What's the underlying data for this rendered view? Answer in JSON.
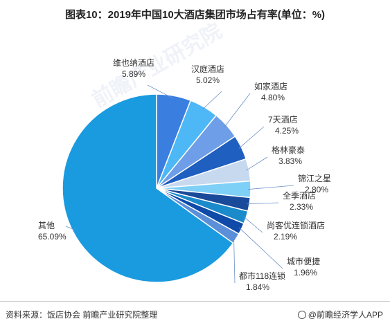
{
  "page": {
    "title": "图表10：2019年中国10大酒店集团市场占有率(单位：%)",
    "source": "资料来源：饭店协会 前瞻产业研究院整理",
    "brand": "@前瞻经济学人APP",
    "watermark": "前瞻产业研究院"
  },
  "chart_data": {
    "type": "pie",
    "title": "图表10：2019年中国10大酒店集团市场占有率(单位：%)",
    "unit": "%",
    "labels": [
      "维也纳酒店",
      "汉庭酒店",
      "如家酒店",
      "7天酒店",
      "格林豪泰",
      "锦江之星",
      "全季酒店",
      "尚客优连锁酒店",
      "城市便捷",
      "都市118连锁",
      "其他"
    ],
    "values": [
      5.89,
      5.02,
      4.8,
      4.25,
      3.83,
      2.8,
      2.33,
      2.19,
      1.96,
      1.84,
      65.09
    ],
    "value_labels": [
      "5.89%",
      "5.02%",
      "4.80%",
      "4.25%",
      "3.83%",
      "2.80%",
      "2.33%",
      "2.19%",
      "1.96%",
      "1.84%",
      "65.09%"
    ],
    "colors": [
      "#3a7fe0",
      "#4db8f5",
      "#6e9ee8",
      "#1f5fbf",
      "#c7d9ef",
      "#7fd0f7",
      "#1a4a9a",
      "#1b8acb",
      "#0f4aa8",
      "#5b8fd8",
      "#1a9be0"
    ]
  }
}
